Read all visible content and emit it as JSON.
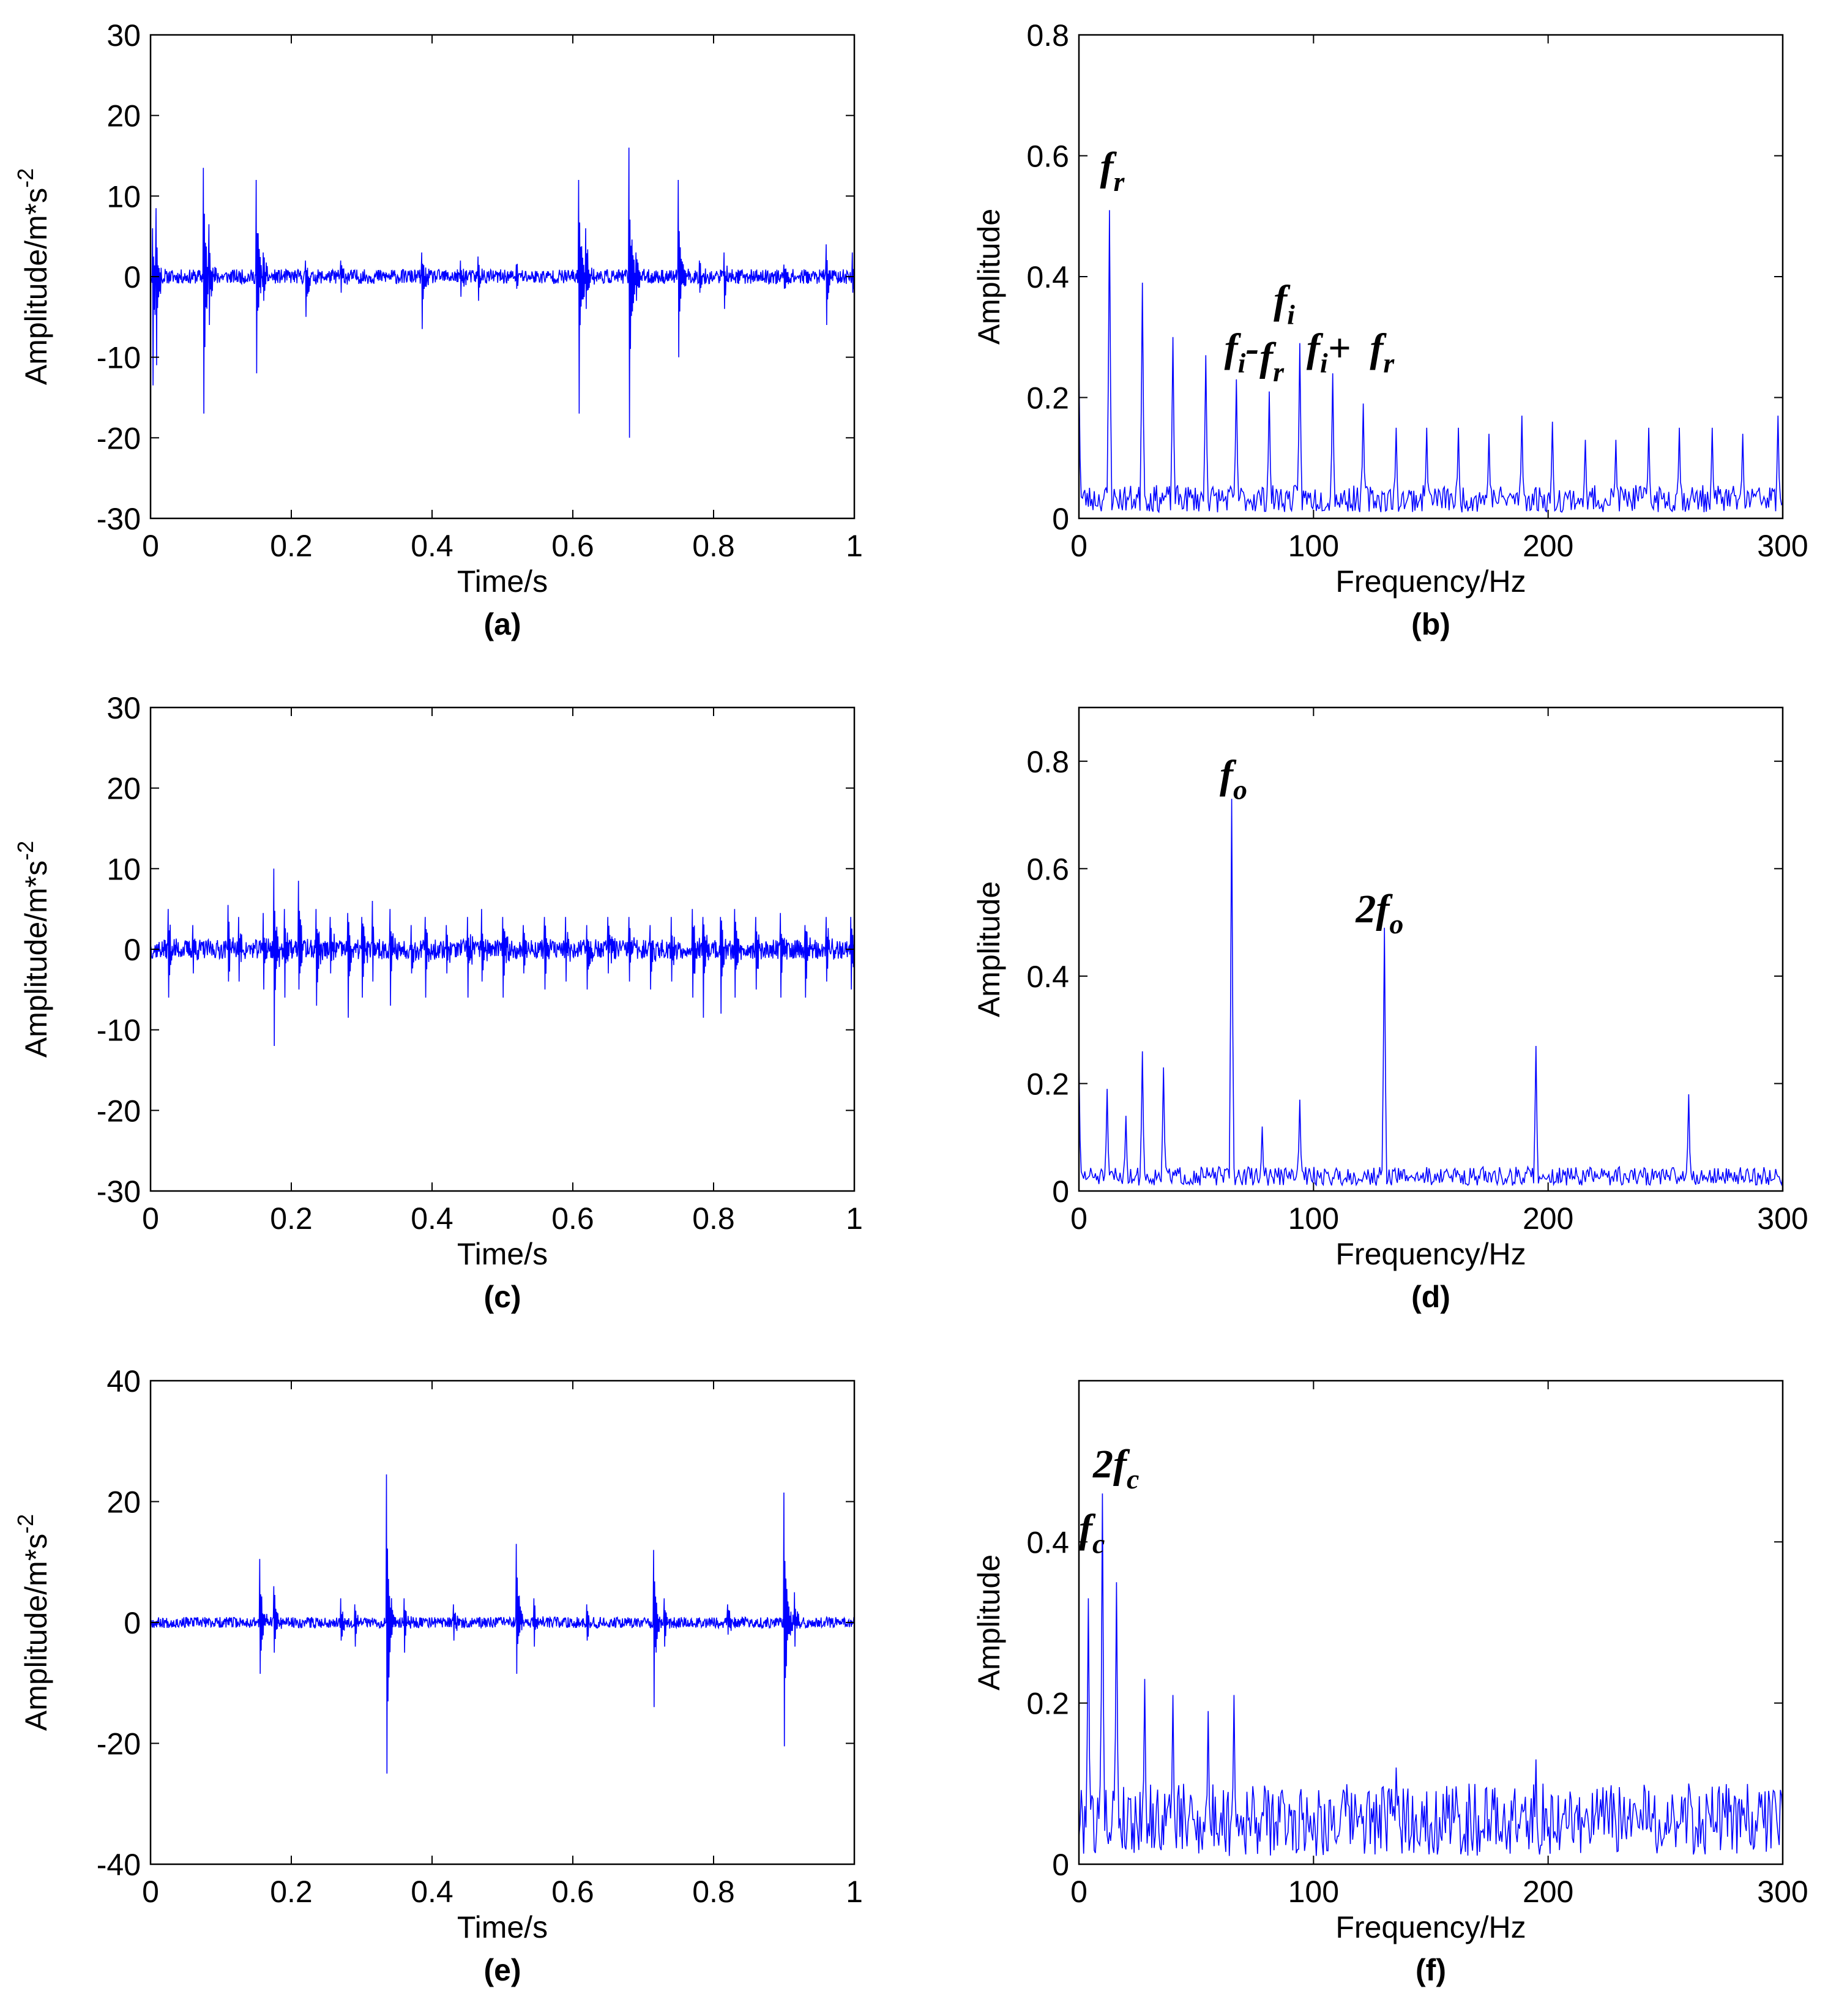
{
  "chart_data": [
    {
      "id": "a",
      "type": "line",
      "signal": "time",
      "caption": "(a)",
      "xlabel": "Time/s",
      "ylabel": "Amplitude/m*s",
      "ylabel_sup": "-2",
      "xlim": [
        0,
        1
      ],
      "ylim": [
        -30,
        30
      ],
      "xticks": [
        0,
        0.2,
        0.4,
        0.6,
        0.8,
        1
      ],
      "xtick_labels": [
        "0",
        "0.2",
        "0.4",
        "0.6",
        "0.8",
        "1"
      ],
      "yticks": [
        -30,
        -20,
        -10,
        0,
        10,
        20,
        30
      ],
      "ytick_labels": [
        "-30",
        "-20",
        "-10",
        "0",
        "10",
        "20",
        "30"
      ],
      "color": "#0000ff",
      "noise": 0.9,
      "seed": 11,
      "impulses": [
        [
          0.003,
          6,
          -13.5
        ],
        [
          0.008,
          8.5,
          -11
        ],
        [
          0.075,
          13.5,
          -17
        ],
        [
          0.083,
          6.5,
          -6
        ],
        [
          0.15,
          12,
          -12
        ],
        [
          0.16,
          3,
          -3
        ],
        [
          0.22,
          2,
          -5
        ],
        [
          0.27,
          2,
          -2
        ],
        [
          0.385,
          3,
          -6.5
        ],
        [
          0.44,
          2,
          -2.5
        ],
        [
          0.465,
          2.5,
          -3
        ],
        [
          0.52,
          1.5,
          -1.5
        ],
        [
          0.608,
          12,
          -17
        ],
        [
          0.618,
          6,
          -4
        ],
        [
          0.68,
          16,
          -20
        ],
        [
          0.69,
          3,
          -3
        ],
        [
          0.75,
          12,
          -10
        ],
        [
          0.78,
          2,
          -2
        ],
        [
          0.815,
          3,
          -4
        ],
        [
          0.9,
          1.5,
          -1.5
        ],
        [
          0.96,
          4,
          -6
        ],
        [
          0.997,
          3,
          -2
        ]
      ]
    },
    {
      "id": "b",
      "type": "line",
      "signal": "spectrum",
      "caption": "(b)",
      "xlabel": "Frequency/Hz",
      "ylabel": "Amplitude",
      "xlim": [
        0,
        300
      ],
      "ylim": [
        0,
        0.8
      ],
      "xticks": [
        0,
        100,
        200,
        300
      ],
      "xtick_labels": [
        "0",
        "100",
        "200",
        "300"
      ],
      "yticks": [
        0,
        0.2,
        0.4,
        0.6,
        0.8
      ],
      "ytick_labels": [
        "0",
        "0.2",
        "0.4",
        "0.6",
        "0.8"
      ],
      "color": "#0000ff",
      "noise": 0.045,
      "seed": 23,
      "peaks": [
        [
          0,
          0.25
        ],
        [
          13,
          0.51
        ],
        [
          27,
          0.39
        ],
        [
          40,
          0.3
        ],
        [
          54,
          0.27
        ],
        [
          67,
          0.23
        ],
        [
          81,
          0.21
        ],
        [
          94,
          0.29
        ],
        [
          108,
          0.24
        ],
        [
          121,
          0.19
        ],
        [
          135,
          0.15
        ],
        [
          148,
          0.15
        ],
        [
          162,
          0.15
        ],
        [
          175,
          0.14
        ],
        [
          189,
          0.17
        ],
        [
          202,
          0.16
        ],
        [
          216,
          0.13
        ],
        [
          229,
          0.13
        ],
        [
          243,
          0.15
        ],
        [
          256,
          0.15
        ],
        [
          270,
          0.15
        ],
        [
          283,
          0.14
        ],
        [
          298,
          0.17
        ]
      ],
      "annotations": [
        {
          "base": "f",
          "sub": "r",
          "at": [
            9,
            0.56
          ]
        },
        {
          "base": "f",
          "sub": "i",
          "at": [
            83,
            0.34
          ]
        },
        {
          "base": "f",
          "sub": "i",
          "text_after": "-",
          "at": [
            62,
            0.26
          ]
        },
        {
          "base": "f",
          "sub": "r",
          "at": [
            77,
            0.245
          ]
        },
        {
          "base": "f",
          "sub": "i",
          "text_after": "+",
          "at": [
            97,
            0.26
          ]
        },
        {
          "base": "f",
          "sub": "r",
          "at": [
            124,
            0.26
          ]
        }
      ]
    },
    {
      "id": "c",
      "type": "line",
      "signal": "time",
      "caption": "(c)",
      "xlabel": "Time/s",
      "ylabel": "Amplitude/m*s",
      "ylabel_sup": "-2",
      "xlim": [
        0,
        1
      ],
      "ylim": [
        -30,
        30
      ],
      "xticks": [
        0,
        0.2,
        0.4,
        0.6,
        0.8,
        1
      ],
      "xtick_labels": [
        "0",
        "0.2",
        "0.4",
        "0.6",
        "0.8",
        "1"
      ],
      "yticks": [
        -30,
        -20,
        -10,
        0,
        10,
        20,
        30
      ],
      "ytick_labels": [
        "-30",
        "-20",
        "-10",
        "0",
        "10",
        "20",
        "30"
      ],
      "color": "#0000ff",
      "noise": 1.2,
      "seed": 37,
      "impulses": [
        [
          0.025,
          5,
          -6
        ],
        [
          0.06,
          3,
          -3
        ],
        [
          0.11,
          5.5,
          -4
        ],
        [
          0.125,
          4,
          -4
        ],
        [
          0.16,
          4.5,
          -5
        ],
        [
          0.175,
          10,
          -12
        ],
        [
          0.19,
          5,
          -6
        ],
        [
          0.21,
          8.5,
          -5
        ],
        [
          0.235,
          5,
          -7
        ],
        [
          0.255,
          4,
          -3
        ],
        [
          0.28,
          4.5,
          -8.5
        ],
        [
          0.3,
          4,
          -6
        ],
        [
          0.315,
          6,
          -4
        ],
        [
          0.34,
          5,
          -7
        ],
        [
          0.37,
          3,
          -3
        ],
        [
          0.39,
          4,
          -6
        ],
        [
          0.42,
          3,
          -3
        ],
        [
          0.45,
          4,
          -6
        ],
        [
          0.47,
          5,
          -4
        ],
        [
          0.5,
          4,
          -6
        ],
        [
          0.53,
          3,
          -3
        ],
        [
          0.56,
          4,
          -5
        ],
        [
          0.59,
          4,
          -4
        ],
        [
          0.62,
          3,
          -5
        ],
        [
          0.65,
          4,
          -3
        ],
        [
          0.68,
          4,
          -4
        ],
        [
          0.71,
          3,
          -5
        ],
        [
          0.74,
          4,
          -4
        ],
        [
          0.77,
          5,
          -6
        ],
        [
          0.785,
          4,
          -8.5
        ],
        [
          0.81,
          4,
          -8
        ],
        [
          0.83,
          5,
          -6
        ],
        [
          0.86,
          4,
          -5
        ],
        [
          0.895,
          4.5,
          -6
        ],
        [
          0.93,
          3,
          -6
        ],
        [
          0.96,
          4,
          -4
        ],
        [
          0.995,
          4,
          -5
        ]
      ]
    },
    {
      "id": "d",
      "type": "line",
      "signal": "spectrum",
      "caption": "(d)",
      "xlabel": "Frequency/Hz",
      "ylabel": "Amplitude",
      "xlim": [
        0,
        300
      ],
      "ylim": [
        0,
        0.9
      ],
      "xticks": [
        0,
        100,
        200,
        300
      ],
      "xtick_labels": [
        "0",
        "100",
        "200",
        "300"
      ],
      "yticks": [
        0,
        0.2,
        0.4,
        0.6,
        0.8
      ],
      "ytick_labels": [
        "0",
        "0.2",
        "0.4",
        "0.6",
        "0.8"
      ],
      "color": "#0000ff",
      "noise": 0.035,
      "seed": 51,
      "peaks": [
        [
          0,
          0.24
        ],
        [
          12,
          0.19
        ],
        [
          20,
          0.14
        ],
        [
          27,
          0.26
        ],
        [
          36,
          0.23
        ],
        [
          65,
          0.73
        ],
        [
          78,
          0.12
        ],
        [
          94,
          0.17
        ],
        [
          130,
          0.49
        ],
        [
          195,
          0.27
        ],
        [
          260,
          0.18
        ]
      ],
      "annotations": [
        {
          "base": "f",
          "sub": "o",
          "at": [
            60,
            0.75
          ]
        },
        {
          "base": "2f",
          "sub": "o",
          "at": [
            118,
            0.5
          ]
        }
      ]
    },
    {
      "id": "e",
      "type": "line",
      "signal": "time",
      "caption": "(e)",
      "xlabel": "Time/s",
      "ylabel": "Amplitude/m*s",
      "ylabel_sup": "-2",
      "xlim": [
        0,
        1
      ],
      "ylim": [
        -40,
        40
      ],
      "xticks": [
        0,
        0.2,
        0.4,
        0.6,
        0.8,
        1
      ],
      "xtick_labels": [
        "0",
        "0.2",
        "0.4",
        "0.6",
        "0.8",
        "1"
      ],
      "yticks": [
        -40,
        -20,
        0,
        20,
        40
      ],
      "ytick_labels": [
        "-40",
        "-20",
        "0",
        "20",
        "40"
      ],
      "color": "#0000ff",
      "noise": 0.9,
      "seed": 67,
      "impulses": [
        [
          0.155,
          10.5,
          -8.5
        ],
        [
          0.175,
          6,
          -5
        ],
        [
          0.27,
          4,
          -3
        ],
        [
          0.29,
          3,
          -4
        ],
        [
          0.335,
          24.5,
          -25
        ],
        [
          0.36,
          4,
          -5
        ],
        [
          0.43,
          3,
          -3
        ],
        [
          0.52,
          13,
          -8.5
        ],
        [
          0.545,
          4,
          -4
        ],
        [
          0.62,
          3,
          -3
        ],
        [
          0.715,
          12,
          -14
        ],
        [
          0.73,
          4,
          -4
        ],
        [
          0.82,
          3,
          -2
        ],
        [
          0.9,
          21.5,
          -20.5
        ],
        [
          0.915,
          5,
          -4
        ]
      ]
    },
    {
      "id": "f",
      "type": "line",
      "signal": "spectrum",
      "caption": "(f)",
      "xlabel": "Frequency/Hz",
      "ylabel": "Amplitude",
      "xlim": [
        0,
        300
      ],
      "ylim": [
        0,
        0.6
      ],
      "xticks": [
        0,
        100,
        200,
        300
      ],
      "xtick_labels": [
        "0",
        "100",
        "200",
        "300"
      ],
      "yticks": [
        0,
        0.2,
        0.4
      ],
      "ytick_labels": [
        "0",
        "0.2",
        "0.4"
      ],
      "color": "#0000ff",
      "noise": 0.09,
      "seed": 79,
      "peaks": [
        [
          4,
          0.33
        ],
        [
          10,
          0.46
        ],
        [
          16,
          0.35
        ],
        [
          28,
          0.23
        ],
        [
          40,
          0.21
        ],
        [
          55,
          0.19
        ],
        [
          66,
          0.21
        ],
        [
          135,
          0.12
        ],
        [
          195,
          0.13
        ],
        [
          260,
          0.1
        ]
      ],
      "annotations": [
        {
          "base": "2f",
          "sub": "c",
          "at": [
            6,
            0.48
          ]
        },
        {
          "base": "f",
          "sub": "c",
          "at": [
            0,
            0.4
          ]
        }
      ]
    }
  ]
}
